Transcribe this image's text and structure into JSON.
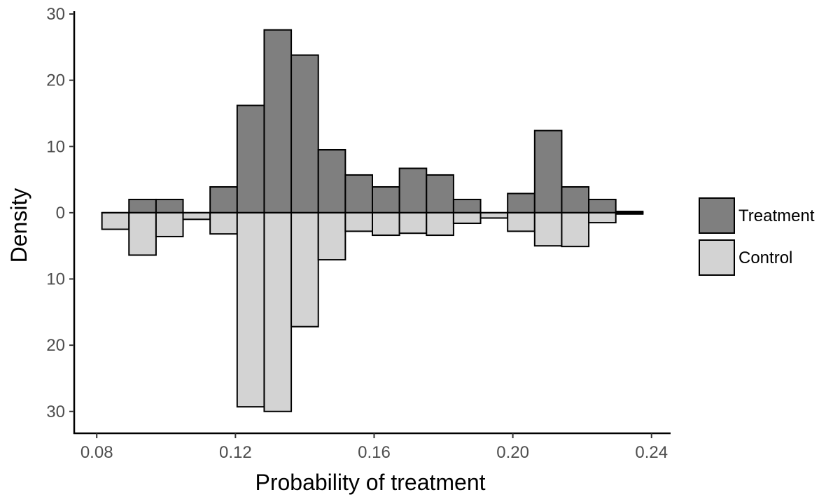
{
  "chart_data": {
    "type": "bar",
    "subtype": "mirrored-histogram",
    "title": "",
    "xlabel": "Probability of treatment",
    "ylabel": "Density",
    "xlim": [
      0.0735,
      0.2455
    ],
    "ylim": [
      -33.3,
      30.0
    ],
    "xticks": [
      {
        "value": 0.08,
        "label": "0.08"
      },
      {
        "value": 0.12,
        "label": "0.12"
      },
      {
        "value": 0.16,
        "label": "0.16"
      },
      {
        "value": 0.2,
        "label": "0.20"
      },
      {
        "value": 0.24,
        "label": "0.24"
      }
    ],
    "yticks": [
      {
        "value": 30,
        "label": "30"
      },
      {
        "value": 20,
        "label": "20"
      },
      {
        "value": 10,
        "label": "10"
      },
      {
        "value": 0,
        "label": "0"
      },
      {
        "value": -10,
        "label": "10"
      },
      {
        "value": -20,
        "label": "20"
      },
      {
        "value": -30,
        "label": "30"
      }
    ],
    "bin_width": 0.0078,
    "bin_starts": [
      0.0815,
      0.0893,
      0.0971,
      0.1049,
      0.1127,
      0.1205,
      0.1283,
      0.1361,
      0.1439,
      0.1517,
      0.1595,
      0.1673,
      0.1751,
      0.1829,
      0.1907,
      0.1985,
      0.2063,
      0.2141,
      0.2219,
      0.2297
    ],
    "series": [
      {
        "name": "Treatment",
        "color": "#7f7f7f",
        "direction": "up",
        "values": [
          0,
          2.0,
          2.0,
          0,
          3.9,
          16.2,
          27.6,
          23.8,
          9.5,
          5.7,
          3.9,
          6.7,
          5.7,
          2.0,
          0,
          2.9,
          12.4,
          3.9,
          2.0,
          0.2
        ]
      },
      {
        "name": "Control",
        "color": "#d3d3d3",
        "direction": "down",
        "values": [
          2.5,
          6.4,
          3.6,
          1.0,
          3.2,
          29.3,
          30.0,
          17.2,
          7.1,
          2.8,
          3.4,
          3.1,
          3.4,
          1.6,
          0.8,
          2.8,
          5.0,
          5.1,
          1.5,
          0.2
        ]
      }
    ],
    "legend": {
      "position": "right",
      "entries": [
        {
          "label": "Treatment",
          "color": "#7f7f7f"
        },
        {
          "label": "Control",
          "color": "#d3d3d3"
        }
      ]
    },
    "grid": false
  }
}
